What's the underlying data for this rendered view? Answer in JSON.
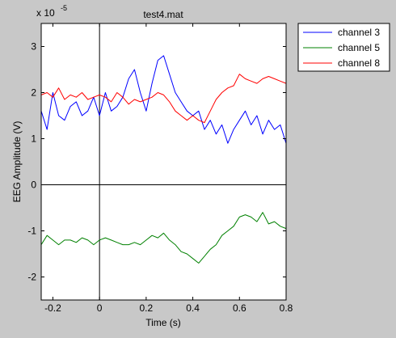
{
  "chart_data": {
    "type": "line",
    "title": "test4.mat",
    "xlabel": "Time (s)",
    "ylabel": "EEG Amplitude (V)",
    "exponent_label": "x 10",
    "exponent": "-5",
    "xlim": [
      -0.25,
      0.8
    ],
    "ylim": [
      -2.5,
      3.5
    ],
    "xticks": [
      -0.2,
      0,
      0.2,
      0.4,
      0.6,
      0.8
    ],
    "xtick_labels": [
      "-0.2",
      "0",
      "0.2",
      "0.4",
      "0.6",
      "0.8"
    ],
    "yticks": [
      -2,
      -1,
      0,
      1,
      2,
      3
    ],
    "ytick_labels": [
      "-2",
      "-1",
      "0",
      "1",
      "2",
      "3"
    ],
    "grid": false,
    "zero_lines": true,
    "legend_position": "outside-right",
    "colors": {
      "background": "#c8c8c8",
      "axes": "#ffffff"
    },
    "series": [
      {
        "name": "channel 3",
        "color": "#0000ff",
        "x": [
          -0.25,
          -0.225,
          -0.2,
          -0.175,
          -0.15,
          -0.125,
          -0.1,
          -0.075,
          -0.05,
          -0.025,
          0,
          0.025,
          0.05,
          0.075,
          0.1,
          0.125,
          0.15,
          0.175,
          0.2,
          0.225,
          0.25,
          0.275,
          0.3,
          0.325,
          0.35,
          0.375,
          0.4,
          0.425,
          0.45,
          0.475,
          0.5,
          0.525,
          0.55,
          0.575,
          0.6,
          0.625,
          0.65,
          0.675,
          0.7,
          0.725,
          0.75,
          0.775,
          0.8
        ],
        "y": [
          1.6,
          1.2,
          2.0,
          1.5,
          1.4,
          1.7,
          1.8,
          1.5,
          1.6,
          1.9,
          1.5,
          2.0,
          1.6,
          1.7,
          1.9,
          2.3,
          2.5,
          2.0,
          1.6,
          2.2,
          2.7,
          2.8,
          2.4,
          2.0,
          1.8,
          1.6,
          1.5,
          1.6,
          1.2,
          1.4,
          1.1,
          1.3,
          0.9,
          1.2,
          1.4,
          1.6,
          1.3,
          1.5,
          1.1,
          1.4,
          1.2,
          1.3,
          0.9
        ]
      },
      {
        "name": "channel 5",
        "color": "#008000",
        "x": [
          -0.25,
          -0.225,
          -0.2,
          -0.175,
          -0.15,
          -0.125,
          -0.1,
          -0.075,
          -0.05,
          -0.025,
          0,
          0.025,
          0.05,
          0.075,
          0.1,
          0.125,
          0.15,
          0.175,
          0.2,
          0.225,
          0.25,
          0.275,
          0.3,
          0.325,
          0.35,
          0.375,
          0.4,
          0.425,
          0.45,
          0.475,
          0.5,
          0.525,
          0.55,
          0.575,
          0.6,
          0.625,
          0.65,
          0.675,
          0.7,
          0.725,
          0.75,
          0.775,
          0.8
        ],
        "y": [
          -1.3,
          -1.1,
          -1.2,
          -1.3,
          -1.2,
          -1.2,
          -1.25,
          -1.15,
          -1.2,
          -1.3,
          -1.2,
          -1.15,
          -1.2,
          -1.25,
          -1.3,
          -1.3,
          -1.25,
          -1.3,
          -1.2,
          -1.1,
          -1.15,
          -1.05,
          -1.2,
          -1.3,
          -1.45,
          -1.5,
          -1.6,
          -1.7,
          -1.55,
          -1.4,
          -1.3,
          -1.1,
          -1.0,
          -0.9,
          -0.7,
          -0.65,
          -0.7,
          -0.8,
          -0.6,
          -0.85,
          -0.8,
          -0.9,
          -0.95
        ]
      },
      {
        "name": "channel 8",
        "color": "#ff0000",
        "x": [
          -0.25,
          -0.225,
          -0.2,
          -0.175,
          -0.15,
          -0.125,
          -0.1,
          -0.075,
          -0.05,
          -0.025,
          0,
          0.025,
          0.05,
          0.075,
          0.1,
          0.125,
          0.15,
          0.175,
          0.2,
          0.225,
          0.25,
          0.275,
          0.3,
          0.325,
          0.35,
          0.375,
          0.4,
          0.425,
          0.45,
          0.475,
          0.5,
          0.525,
          0.55,
          0.575,
          0.6,
          0.625,
          0.65,
          0.675,
          0.7,
          0.725,
          0.75,
          0.775,
          0.8
        ],
        "y": [
          1.95,
          2.0,
          1.9,
          2.1,
          1.85,
          1.95,
          1.9,
          2.0,
          1.85,
          1.9,
          1.95,
          1.9,
          1.8,
          2.0,
          1.9,
          1.75,
          1.85,
          1.8,
          1.85,
          1.9,
          2.0,
          1.95,
          1.8,
          1.6,
          1.5,
          1.4,
          1.5,
          1.4,
          1.35,
          1.6,
          1.85,
          2.0,
          2.1,
          2.15,
          2.4,
          2.3,
          2.25,
          2.2,
          2.3,
          2.35,
          2.3,
          2.25,
          2.2
        ]
      }
    ]
  }
}
